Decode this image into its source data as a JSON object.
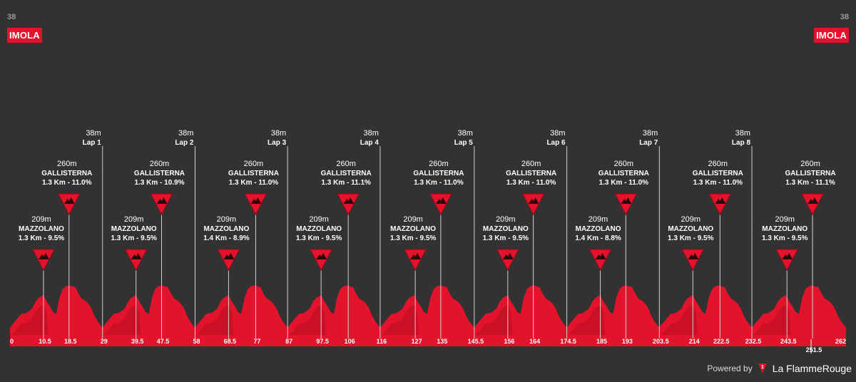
{
  "start": {
    "altitude": "38",
    "name": "IMOLA"
  },
  "finish": {
    "altitude": "38",
    "name": "IMOLA"
  },
  "branding": {
    "powered_by": "Powered by",
    "brand": "La FlammeRouge"
  },
  "colors": {
    "background": "#323232",
    "profile": "#e3132c",
    "profile_dark": "#b80f22",
    "marker": "#e3132c",
    "text": "#ffffff"
  },
  "chart_data": {
    "type": "area",
    "title": "",
    "xlabel": "",
    "ylabel": "",
    "x_ticks": [
      "0",
      "10.5",
      "18.5",
      "29",
      "39.5",
      "47.5",
      "58",
      "68.5",
      "77",
      "87",
      "97.5",
      "106",
      "116",
      "127",
      "135",
      "145.5",
      "156",
      "164",
      "174.5",
      "185",
      "193",
      "203.5",
      "214",
      "222.5",
      "232.5",
      "243.5",
      "251.5",
      "262"
    ],
    "x_ticks_km": [
      0,
      10.5,
      18.5,
      29,
      39.5,
      47.5,
      58,
      68.5,
      77,
      87,
      97.5,
      106,
      116,
      127,
      135,
      145.5,
      156,
      164,
      174.5,
      185,
      193,
      203.5,
      214,
      222.5,
      232.5,
      243.5,
      251.5,
      262
    ],
    "xlim": [
      0,
      262
    ],
    "laps": [
      {
        "km": 29,
        "altitude": "38m",
        "label": "Lap 1"
      },
      {
        "km": 58,
        "altitude": "38m",
        "label": "Lap 2"
      },
      {
        "km": 87,
        "altitude": "38m",
        "label": "Lap 3"
      },
      {
        "km": 116,
        "altitude": "38m",
        "label": "Lap 4"
      },
      {
        "km": 145.5,
        "altitude": "38m",
        "label": "Lap 5"
      },
      {
        "km": 174.5,
        "altitude": "38m",
        "label": "Lap 6"
      },
      {
        "km": 203.5,
        "altitude": "38m",
        "label": "Lap 7"
      },
      {
        "km": 232.5,
        "altitude": "38m",
        "label": "Lap 8"
      }
    ],
    "climbs": [
      {
        "km": 10.5,
        "altitude": "209m",
        "name": "MAZZOLANO",
        "detail": "1.3 Km - 9.5%"
      },
      {
        "km": 18.5,
        "altitude": "260m",
        "name": "GALLISTERNA",
        "detail": "1.3 Km - 11.0%"
      },
      {
        "km": 39.5,
        "altitude": "209m",
        "name": "MAZZOLANO",
        "detail": "1.3 Km - 9.5%"
      },
      {
        "km": 47.5,
        "altitude": "260m",
        "name": "GALLISTERNA",
        "detail": "1.3 Km - 10.9%"
      },
      {
        "km": 68.5,
        "altitude": "209m",
        "name": "MAZZOLANO",
        "detail": "1.4 Km - 8.9%"
      },
      {
        "km": 77,
        "altitude": "260m",
        "name": "GALLISTERNA",
        "detail": "1.3 Km - 11.0%"
      },
      {
        "km": 97.5,
        "altitude": "209m",
        "name": "MAZZOLANO",
        "detail": "1.3 Km - 9.5%"
      },
      {
        "km": 106,
        "altitude": "260m",
        "name": "GALLISTERNA",
        "detail": "1.3 Km - 11.1%"
      },
      {
        "km": 127,
        "altitude": "209m",
        "name": "MAZZOLANO",
        "detail": "1.3 Km - 9.5%"
      },
      {
        "km": 135,
        "altitude": "260m",
        "name": "GALLISTERNA",
        "detail": "1.3 Km - 11.0%"
      },
      {
        "km": 156,
        "altitude": "209m",
        "name": "MAZZOLANO",
        "detail": "1.3 Km - 9.5%"
      },
      {
        "km": 164,
        "altitude": "260m",
        "name": "GALLISTERNA",
        "detail": "1.3 Km - 11.0%"
      },
      {
        "km": 185,
        "altitude": "209m",
        "name": "MAZZOLANO",
        "detail": "1.4 Km - 8.8%"
      },
      {
        "km": 193,
        "altitude": "260m",
        "name": "GALLISTERNA",
        "detail": "1.3 Km - 11.0%"
      },
      {
        "km": 214,
        "altitude": "209m",
        "name": "MAZZOLANO",
        "detail": "1.3 Km - 9.5%"
      },
      {
        "km": 222.5,
        "altitude": "260m",
        "name": "GALLISTERNA",
        "detail": "1.3 Km - 11.0%"
      },
      {
        "km": 243.5,
        "altitude": "209m",
        "name": "MAZZOLANO",
        "detail": "1.3 Km - 9.5%"
      },
      {
        "km": 251.5,
        "altitude": "260m",
        "name": "GALLISTERNA",
        "detail": "1.3 Km - 11.1%"
      }
    ],
    "lap_profile": {
      "x": [
        0,
        1,
        2,
        3.5,
        5,
        6,
        7,
        8,
        9,
        10.5,
        11.5,
        12.5,
        13.5,
        14.5,
        15.5,
        16.5,
        17.5,
        18.5,
        19.5,
        20.5,
        21.5,
        22.5,
        23.5,
        24.5,
        25.5,
        26.5,
        27.5,
        29
      ],
      "y": [
        38,
        60,
        80,
        110,
        115,
        125,
        140,
        175,
        195,
        209,
        175,
        150,
        120,
        110,
        195,
        240,
        255,
        260,
        255,
        250,
        215,
        190,
        180,
        165,
        140,
        100,
        70,
        38
      ]
    },
    "ylim": [
      0,
      320
    ]
  }
}
